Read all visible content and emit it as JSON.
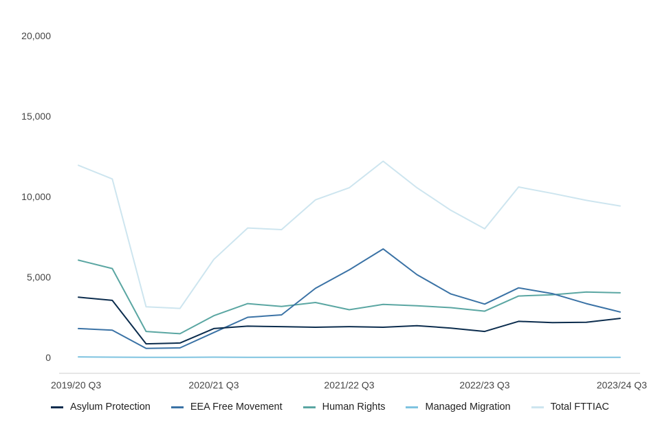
{
  "chart_data": {
    "type": "line",
    "title": "",
    "xlabel": "",
    "ylabel": "",
    "ylim": [
      0,
      20000
    ],
    "yticks": [
      0,
      5000,
      10000,
      15000,
      20000
    ],
    "ytick_labels": [
      "0",
      "5,000",
      "10,000",
      "15,000",
      "20,000"
    ],
    "x": [
      "2019/20 Q3",
      "2019/20 Q4",
      "2020/21 Q1",
      "2020/21 Q2",
      "2020/21 Q3",
      "2020/21 Q4",
      "2021/22 Q1",
      "2021/22 Q2",
      "2021/22 Q3",
      "2021/22 Q4",
      "2022/23 Q1",
      "2022/23 Q2",
      "2022/23 Q3",
      "2022/23 Q4",
      "2023/24 Q1",
      "2023/24 Q2",
      "2023/24 Q3"
    ],
    "xtick_labels": [
      "2019/20 Q3",
      "2020/21 Q3",
      "2021/22 Q3",
      "2022/23 Q3",
      "2023/24 Q3"
    ],
    "xtick_indices": [
      0,
      4,
      8,
      12,
      16
    ],
    "grid": false,
    "legend_position": "bottom",
    "series": [
      {
        "name": "Asylum Protection",
        "color": "#0b2c4d",
        "values": [
          3750,
          3550,
          850,
          900,
          1800,
          1950,
          1920,
          1880,
          1920,
          1880,
          1980,
          1830,
          1620,
          2250,
          2170,
          2190,
          2430
        ]
      },
      {
        "name": "EEA Free Movement",
        "color": "#3a72a5",
        "values": [
          1800,
          1700,
          570,
          600,
          1550,
          2500,
          2650,
          4300,
          5450,
          6750,
          5150,
          3950,
          3320,
          4330,
          3970,
          3350,
          2830
        ]
      },
      {
        "name": "Human Rights",
        "color": "#5aa6a2",
        "values": [
          6050,
          5530,
          1620,
          1480,
          2600,
          3350,
          3170,
          3420,
          2970,
          3300,
          3220,
          3100,
          2880,
          3820,
          3900,
          4070,
          4020
        ]
      },
      {
        "name": "Managed Migration",
        "color": "#7ec3e0",
        "values": [
          40,
          20,
          10,
          10,
          20,
          10,
          10,
          10,
          10,
          10,
          10,
          10,
          10,
          10,
          10,
          10,
          10
        ]
      },
      {
        "name": "Total FTTIAC",
        "color": "#cde5ef",
        "values": [
          11950,
          11100,
          3150,
          3050,
          6100,
          8050,
          7950,
          9800,
          10550,
          12200,
          10550,
          9150,
          8000,
          10600,
          10200,
          9770,
          9420
        ]
      }
    ]
  }
}
